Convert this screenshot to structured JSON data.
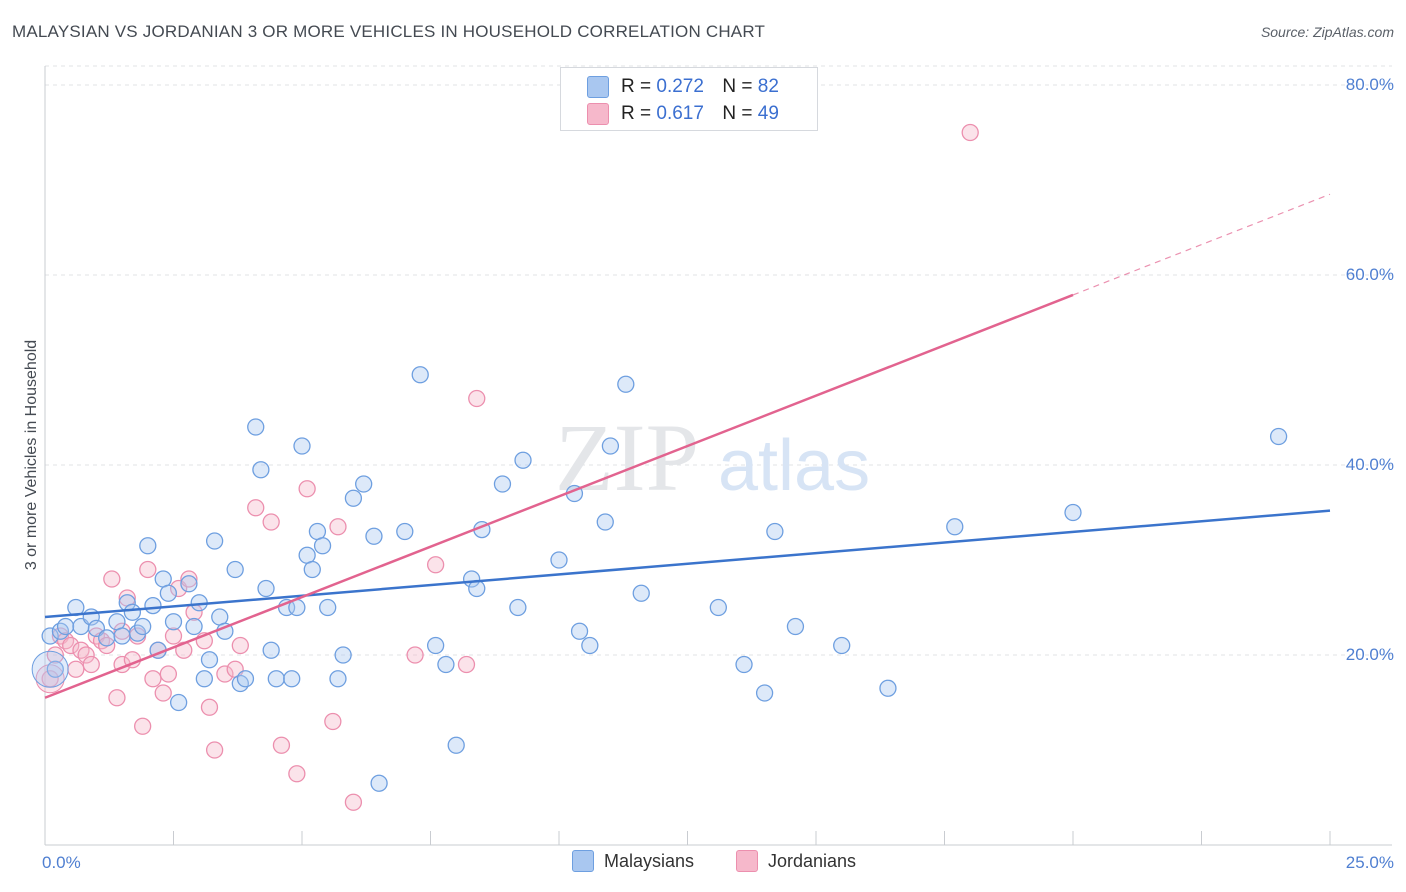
{
  "title": "MALAYSIAN VS JORDANIAN 3 OR MORE VEHICLES IN HOUSEHOLD CORRELATION CHART",
  "source": "Source: ZipAtlas.com",
  "watermark": {
    "zip": "ZIP",
    "atlas": "atlas"
  },
  "legend": {
    "r_label": "R =",
    "n_label": "N =",
    "malaysians": {
      "r": "0.272",
      "n": "82"
    },
    "jordanians": {
      "r": "0.617",
      "n": "49"
    }
  },
  "bottom_legend": {
    "malaysians": "Malaysians",
    "jordanians": "Jordanians"
  },
  "colors": {
    "malaysians_fill": "#a9c7f0",
    "malaysians_stroke": "#6e9fe0",
    "malaysians_line": "#3b74cc",
    "jordanians_fill": "#f6b8cb",
    "jordanians_stroke": "#ec8fae",
    "jordanians_line": "#e2638f",
    "tick_text": "#4f7fd1"
  },
  "chart_data": {
    "type": "scatter",
    "title": "MALAYSIAN VS JORDANIAN 3 OR MORE VEHICLES IN HOUSEHOLD CORRELATION CHART",
    "xlabel": "",
    "ylabel": "3 or more Vehicles in Household",
    "xlim": [
      0,
      25
    ],
    "ylim": [
      0,
      82
    ],
    "x_ticks": [
      "0.0%",
      "25.0%"
    ],
    "y_ticks": [
      {
        "value": 20,
        "label": "20.0%"
      },
      {
        "value": 40,
        "label": "40.0%"
      },
      {
        "value": 60,
        "label": "60.0%"
      },
      {
        "value": 80,
        "label": "80.0%"
      }
    ],
    "series": [
      {
        "name": "Malaysians",
        "r": 0.272,
        "n": 82,
        "trend": {
          "x0": 0,
          "y0": 24.0,
          "x1": 25,
          "y1": 35.2,
          "dashed_from": null
        },
        "points": [
          [
            0.1,
            22.0
          ],
          [
            0.3,
            22.5
          ],
          [
            0.4,
            23.0
          ],
          [
            0.6,
            25.0
          ],
          [
            0.7,
            23.0
          ],
          [
            0.9,
            24.0
          ],
          [
            1.0,
            22.8
          ],
          [
            1.2,
            21.8
          ],
          [
            1.4,
            23.5
          ],
          [
            1.5,
            22.0
          ],
          [
            1.6,
            25.5
          ],
          [
            1.7,
            24.5
          ],
          [
            1.8,
            22.3
          ],
          [
            1.9,
            23.0
          ],
          [
            2.0,
            31.5
          ],
          [
            2.1,
            25.2
          ],
          [
            2.3,
            28.0
          ],
          [
            2.4,
            26.5
          ],
          [
            2.5,
            23.5
          ],
          [
            2.6,
            15.0
          ],
          [
            2.8,
            27.5
          ],
          [
            2.9,
            23.0
          ],
          [
            3.0,
            25.5
          ],
          [
            3.1,
            17.5
          ],
          [
            3.3,
            32.0
          ],
          [
            3.4,
            24.0
          ],
          [
            3.5,
            22.5
          ],
          [
            3.7,
            29.0
          ],
          [
            3.8,
            17.0
          ],
          [
            3.9,
            17.5
          ],
          [
            4.1,
            44.0
          ],
          [
            4.2,
            39.5
          ],
          [
            4.3,
            27.0
          ],
          [
            4.4,
            20.5
          ],
          [
            4.5,
            17.5
          ],
          [
            4.7,
            25.0
          ],
          [
            4.8,
            17.5
          ],
          [
            4.9,
            25.0
          ],
          [
            5.0,
            42.0
          ],
          [
            5.1,
            30.5
          ],
          [
            5.2,
            29.0
          ],
          [
            5.3,
            33.0
          ],
          [
            5.4,
            31.5
          ],
          [
            5.5,
            25.0
          ],
          [
            5.7,
            17.5
          ],
          [
            5.8,
            20.0
          ],
          [
            6.0,
            36.5
          ],
          [
            6.2,
            38.0
          ],
          [
            6.4,
            32.5
          ],
          [
            7.0,
            33.0
          ],
          [
            7.3,
            49.5
          ],
          [
            7.6,
            21.0
          ],
          [
            7.8,
            19.0
          ],
          [
            8.0,
            10.5
          ],
          [
            8.3,
            28.0
          ],
          [
            8.4,
            27.0
          ],
          [
            8.5,
            33.2
          ],
          [
            8.9,
            38.0
          ],
          [
            9.2,
            25.0
          ],
          [
            9.3,
            40.5
          ],
          [
            10.0,
            30.0
          ],
          [
            10.3,
            37.0
          ],
          [
            10.4,
            22.5
          ],
          [
            10.6,
            21.0
          ],
          [
            10.9,
            34.0
          ],
          [
            11.0,
            42.0
          ],
          [
            11.3,
            48.5
          ],
          [
            11.6,
            26.5
          ],
          [
            13.1,
            25.0
          ],
          [
            13.6,
            19.0
          ],
          [
            14.0,
            16.0
          ],
          [
            14.2,
            33.0
          ],
          [
            14.6,
            23.0
          ],
          [
            15.5,
            21.0
          ],
          [
            16.4,
            16.5
          ],
          [
            17.7,
            33.5
          ],
          [
            20.0,
            35.0
          ],
          [
            24.0,
            43.0
          ],
          [
            6.5,
            6.5
          ],
          [
            2.2,
            20.5
          ],
          [
            3.2,
            19.5
          ],
          [
            0.2,
            18.5
          ]
        ]
      },
      {
        "name": "Jordanians",
        "r": 0.617,
        "n": 49,
        "trend": {
          "x0": 0,
          "y0": 15.5,
          "x1": 25,
          "y1": 68.5,
          "dashed_from": 20.0
        },
        "points": [
          [
            0.1,
            17.5
          ],
          [
            0.2,
            20.0
          ],
          [
            0.3,
            22.0
          ],
          [
            0.4,
            21.5
          ],
          [
            0.5,
            21.0
          ],
          [
            0.6,
            18.5
          ],
          [
            0.7,
            20.5
          ],
          [
            0.8,
            20.0
          ],
          [
            0.9,
            19.0
          ],
          [
            1.0,
            22.0
          ],
          [
            1.1,
            21.5
          ],
          [
            1.2,
            21.0
          ],
          [
            1.3,
            28.0
          ],
          [
            1.4,
            15.5
          ],
          [
            1.5,
            19.0
          ],
          [
            1.6,
            26.0
          ],
          [
            1.7,
            19.5
          ],
          [
            1.8,
            22.0
          ],
          [
            1.9,
            12.5
          ],
          [
            2.0,
            29.0
          ],
          [
            2.1,
            17.5
          ],
          [
            2.2,
            20.5
          ],
          [
            2.3,
            16.0
          ],
          [
            2.4,
            18.0
          ],
          [
            2.5,
            22.0
          ],
          [
            2.6,
            27.0
          ],
          [
            2.7,
            20.5
          ],
          [
            2.8,
            28.0
          ],
          [
            3.1,
            21.5
          ],
          [
            3.2,
            14.5
          ],
          [
            3.3,
            10.0
          ],
          [
            3.5,
            18.0
          ],
          [
            3.7,
            18.5
          ],
          [
            3.8,
            21.0
          ],
          [
            4.1,
            35.5
          ],
          [
            4.4,
            34.0
          ],
          [
            4.6,
            10.5
          ],
          [
            4.9,
            7.5
          ],
          [
            5.1,
            37.5
          ],
          [
            5.6,
            13.0
          ],
          [
            5.7,
            33.5
          ],
          [
            6.0,
            4.5
          ],
          [
            7.2,
            20.0
          ],
          [
            7.6,
            29.5
          ],
          [
            8.2,
            19.0
          ],
          [
            8.4,
            47.0
          ],
          [
            18.0,
            75.0
          ],
          [
            2.9,
            24.5
          ],
          [
            1.5,
            22.5
          ]
        ]
      }
    ]
  }
}
